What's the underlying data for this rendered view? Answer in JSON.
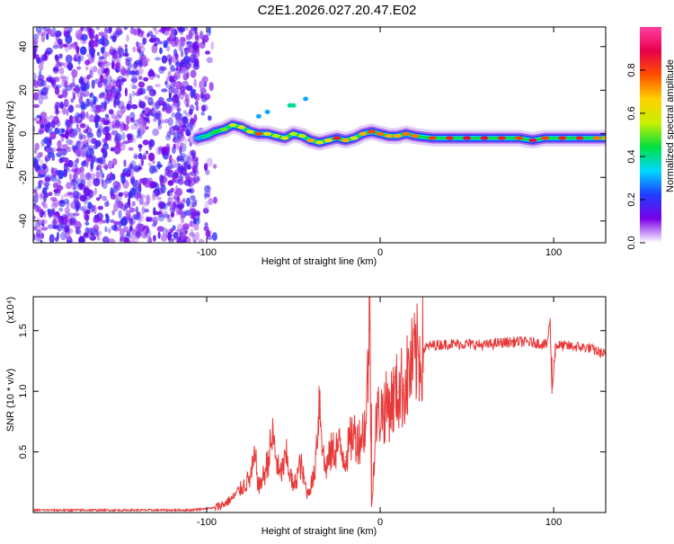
{
  "title": "C2E1.2026.027.20.47.E02",
  "chart_data": [
    {
      "type": "heatmap",
      "name": "spectrogram",
      "xlabel": "Height of straight line (km)",
      "ylabel": "Frequency (Hz)",
      "xlim": [
        -200,
        130
      ],
      "ylim": [
        -50,
        49
      ],
      "xticks": [
        "-100",
        "0",
        "100"
      ],
      "xtick_values": [
        -100,
        0,
        100
      ],
      "yticks": [
        "40",
        "20",
        "0",
        "-20",
        "-40"
      ],
      "ytick_values": [
        40,
        20,
        0,
        -20,
        -40
      ],
      "colorbar": {
        "label": "Normalized spectral amplitude",
        "range": [
          0,
          1
        ],
        "ticks": [
          "0.0",
          "0.2",
          "0.4",
          "0.6",
          "0.8"
        ],
        "tick_values": [
          0.0,
          0.2,
          0.4,
          0.6,
          0.8
        ],
        "colors": [
          "#ffffff",
          "#7a00e8",
          "#1f3cff",
          "#00d8ff",
          "#00e040",
          "#c8f000",
          "#ffd000",
          "#ff5000",
          "#e8004a",
          "#ff40a0"
        ]
      },
      "signal_track": [
        {
          "x": -105,
          "y": -2,
          "v": 0.3
        },
        {
          "x": -100,
          "y": -1,
          "v": 0.4
        },
        {
          "x": -95,
          "y": 1,
          "v": 0.45
        },
        {
          "x": -90,
          "y": 2,
          "v": 0.5
        },
        {
          "x": -85,
          "y": 4,
          "v": 0.55
        },
        {
          "x": -80,
          "y": 3,
          "v": 0.6
        },
        {
          "x": -75,
          "y": 1,
          "v": 0.6
        },
        {
          "x": -70,
          "y": 0,
          "v": 0.8
        },
        {
          "x": -65,
          "y": 0,
          "v": 0.6
        },
        {
          "x": -60,
          "y": -1,
          "v": 0.55
        },
        {
          "x": -55,
          "y": -2,
          "v": 0.6
        },
        {
          "x": -50,
          "y": 0,
          "v": 0.55
        },
        {
          "x": -45,
          "y": -1,
          "v": 0.55
        },
        {
          "x": -40,
          "y": -3,
          "v": 0.7
        },
        {
          "x": -35,
          "y": -4,
          "v": 0.6
        },
        {
          "x": -30,
          "y": -3,
          "v": 0.65
        },
        {
          "x": -25,
          "y": -2,
          "v": 0.85
        },
        {
          "x": -20,
          "y": -3,
          "v": 0.7
        },
        {
          "x": -15,
          "y": -2,
          "v": 0.6
        },
        {
          "x": -10,
          "y": 0,
          "v": 0.7
        },
        {
          "x": -5,
          "y": 1,
          "v": 0.8
        },
        {
          "x": 0,
          "y": 0,
          "v": 0.75
        },
        {
          "x": 5,
          "y": -1,
          "v": 0.7
        },
        {
          "x": 10,
          "y": -1,
          "v": 0.7
        },
        {
          "x": 15,
          "y": 0,
          "v": 0.75
        },
        {
          "x": 20,
          "y": -1,
          "v": 0.75
        },
        {
          "x": 30,
          "y": -2,
          "v": 0.8
        },
        {
          "x": 40,
          "y": -2,
          "v": 0.85
        },
        {
          "x": 50,
          "y": -2,
          "v": 0.9
        },
        {
          "x": 60,
          "y": -2,
          "v": 0.9
        },
        {
          "x": 70,
          "y": -2,
          "v": 0.85
        },
        {
          "x": 80,
          "y": -2,
          "v": 0.8
        },
        {
          "x": 88,
          "y": -3,
          "v": 0.9
        },
        {
          "x": 95,
          "y": -2,
          "v": 0.8
        },
        {
          "x": 105,
          "y": -2,
          "v": 0.85
        },
        {
          "x": 115,
          "y": -2,
          "v": 0.85
        },
        {
          "x": 125,
          "y": -2,
          "v": 0.75
        },
        {
          "x": 130,
          "y": -2,
          "v": 0.7
        }
      ],
      "harmonic_points": [
        {
          "x": -70,
          "y": 8,
          "v": 0.3
        },
        {
          "x": -65,
          "y": 10,
          "v": 0.3
        },
        {
          "x": -52,
          "y": 13,
          "v": 0.4
        },
        {
          "x": -50,
          "y": 13,
          "v": 0.4
        },
        {
          "x": -43,
          "y": 16,
          "v": 0.3
        }
      ],
      "noise_region": [
        -200,
        -95
      ]
    },
    {
      "type": "line",
      "name": "snr",
      "xlabel": "Height of straight line (km)",
      "ylabel": "SNR (10 * v/v)",
      "multiplier_label": "(x10⁴)",
      "xlim": [
        -200,
        130
      ],
      "ylim": [
        0,
        1.78
      ],
      "xticks": [
        "-100",
        "0",
        "100"
      ],
      "xtick_values": [
        -100,
        0,
        100
      ],
      "yticks": [
        "0.5",
        "1.0",
        "1.5"
      ],
      "ytick_values": [
        0.5,
        1.0,
        1.5
      ],
      "color": "#e83a3a",
      "series": [
        {
          "x": -200,
          "y": 0.02
        },
        {
          "x": -150,
          "y": 0.02
        },
        {
          "x": -110,
          "y": 0.02
        },
        {
          "x": -95,
          "y": 0.04
        },
        {
          "x": -90,
          "y": 0.07
        },
        {
          "x": -85,
          "y": 0.12
        },
        {
          "x": -80,
          "y": 0.2
        },
        {
          "x": -75,
          "y": 0.28
        },
        {
          "x": -72,
          "y": 0.45
        },
        {
          "x": -70,
          "y": 0.2
        },
        {
          "x": -66,
          "y": 0.35
        },
        {
          "x": -62,
          "y": 0.62
        },
        {
          "x": -58,
          "y": 0.3
        },
        {
          "x": -54,
          "y": 0.45
        },
        {
          "x": -50,
          "y": 0.2
        },
        {
          "x": -46,
          "y": 0.4
        },
        {
          "x": -42,
          "y": 0.15
        },
        {
          "x": -38,
          "y": 0.3
        },
        {
          "x": -35,
          "y": 0.95
        },
        {
          "x": -32,
          "y": 0.35
        },
        {
          "x": -28,
          "y": 0.5
        },
        {
          "x": -24,
          "y": 0.55
        },
        {
          "x": -20,
          "y": 0.45
        },
        {
          "x": -16,
          "y": 0.65
        },
        {
          "x": -12,
          "y": 0.6
        },
        {
          "x": -8,
          "y": 0.75
        },
        {
          "x": -6,
          "y": 1.75
        },
        {
          "x": -5,
          "y": 0.05
        },
        {
          "x": -2,
          "y": 0.8
        },
        {
          "x": 2,
          "y": 0.85
        },
        {
          "x": 6,
          "y": 0.9
        },
        {
          "x": 10,
          "y": 1.0
        },
        {
          "x": 14,
          "y": 1.05
        },
        {
          "x": 18,
          "y": 1.2
        },
        {
          "x": 22,
          "y": 1.3
        },
        {
          "x": 26,
          "y": 1.36
        },
        {
          "x": 30,
          "y": 1.38
        },
        {
          "x": 40,
          "y": 1.39
        },
        {
          "x": 50,
          "y": 1.39
        },
        {
          "x": 60,
          "y": 1.38
        },
        {
          "x": 70,
          "y": 1.4
        },
        {
          "x": 80,
          "y": 1.41
        },
        {
          "x": 90,
          "y": 1.4
        },
        {
          "x": 96,
          "y": 1.38
        },
        {
          "x": 98,
          "y": 1.58
        },
        {
          "x": 99,
          "y": 0.98
        },
        {
          "x": 101,
          "y": 1.38
        },
        {
          "x": 110,
          "y": 1.37
        },
        {
          "x": 120,
          "y": 1.36
        },
        {
          "x": 130,
          "y": 1.3
        }
      ]
    }
  ]
}
